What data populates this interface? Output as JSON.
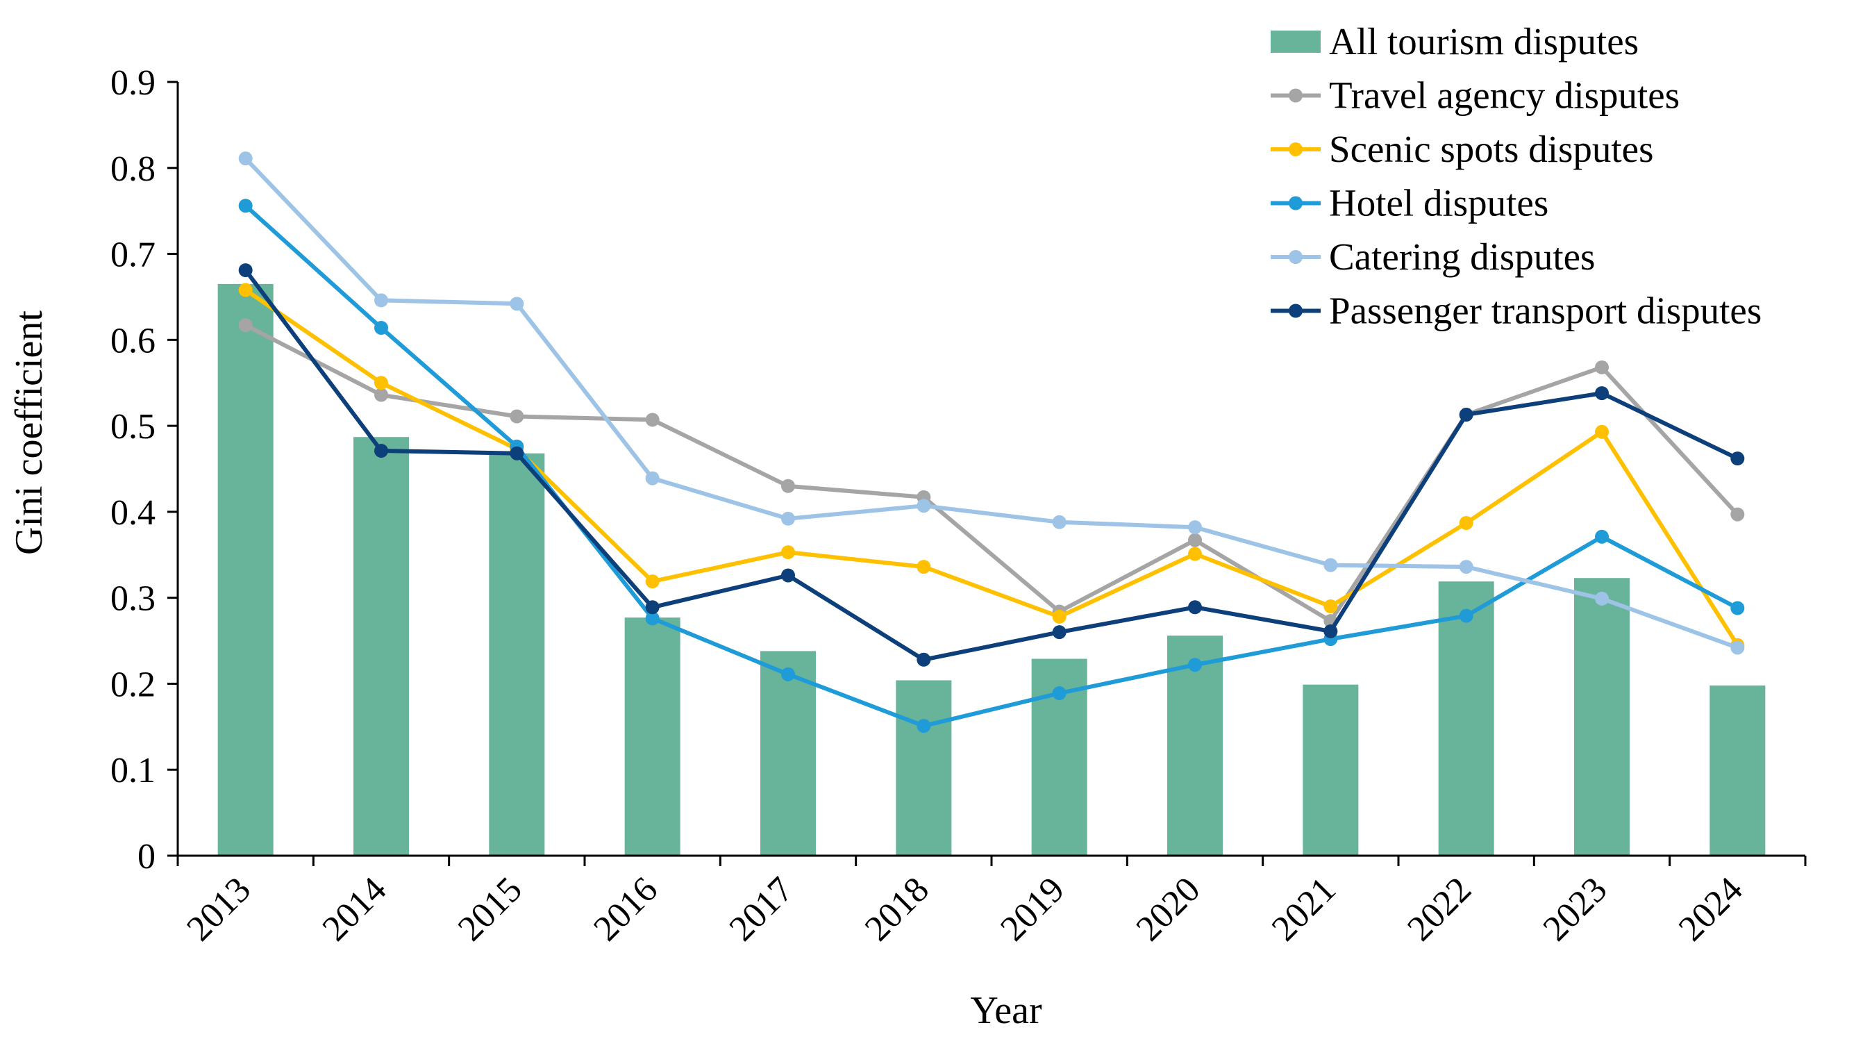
{
  "chart_data": {
    "type": "bar+line",
    "title": "",
    "xlabel": "Year",
    "ylabel": "Gini coefficient",
    "ylim": [
      0,
      0.9
    ],
    "yticks": [
      "0",
      "0.1",
      "0.2",
      "0.3",
      "0.4",
      "0.5",
      "0.6",
      "0.7",
      "0.8",
      "0.9"
    ],
    "grid": false,
    "legend_position": "top-right",
    "categories": [
      "2013",
      "2014",
      "2015",
      "2016",
      "2017",
      "2018",
      "2019",
      "2020",
      "2021",
      "2022",
      "2023",
      "2024"
    ],
    "bars": {
      "name": "All tourism disputes",
      "color": "#68B49A",
      "values": [
        0.665,
        0.487,
        0.468,
        0.277,
        0.238,
        0.204,
        0.229,
        0.256,
        0.199,
        0.319,
        0.323,
        0.198
      ]
    },
    "series": [
      {
        "name": "Travel agency disputes",
        "color": "#A5A5A5",
        "values": [
          0.617,
          0.536,
          0.511,
          0.507,
          0.43,
          0.417,
          0.284,
          0.367,
          0.273,
          0.513,
          0.568,
          0.397
        ]
      },
      {
        "name": "Scenic spots disputes",
        "color": "#FFC000",
        "values": [
          0.658,
          0.55,
          0.473,
          0.319,
          0.353,
          0.336,
          0.278,
          0.351,
          0.29,
          0.387,
          0.493,
          0.245
        ]
      },
      {
        "name": "Hotel disputes",
        "color": "#1F9BD7",
        "values": [
          0.756,
          0.614,
          0.476,
          0.276,
          0.211,
          0.151,
          0.189,
          0.222,
          0.252,
          0.279,
          0.371,
          0.288
        ]
      },
      {
        "name": "Catering disputes",
        "color": "#9DC3E6",
        "values": [
          0.811,
          0.646,
          0.642,
          0.439,
          0.392,
          0.407,
          0.388,
          0.382,
          0.338,
          0.336,
          0.299,
          0.242
        ]
      },
      {
        "name": "Passenger transport disputes",
        "color": "#0D3F7A",
        "values": [
          0.681,
          0.471,
          0.468,
          0.289,
          0.326,
          0.228,
          0.26,
          0.289,
          0.261,
          0.513,
          0.538,
          0.462
        ]
      }
    ]
  }
}
